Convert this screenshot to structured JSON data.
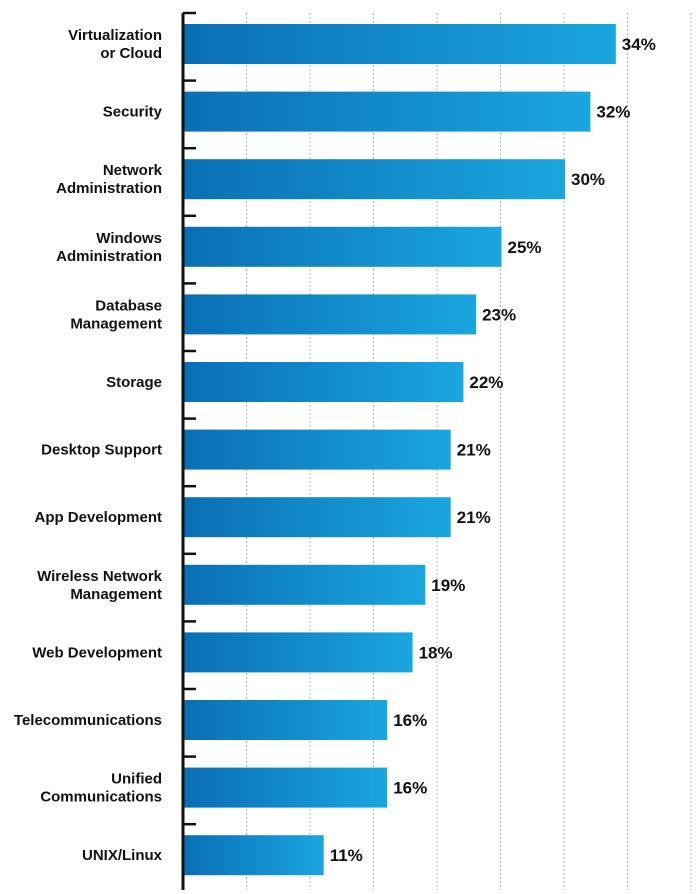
{
  "chart_data": {
    "type": "bar",
    "orientation": "horizontal",
    "categories": [
      "Virtualization or Cloud",
      "Security",
      "Network Administration",
      "Windows Administration",
      "Database Management",
      "Storage",
      "Desktop Support",
      "App Development",
      "Wireless Network Management",
      "Web Development",
      "Telecommunications",
      "Unified Communications",
      "UNIX/Linux"
    ],
    "category_lines": [
      [
        "Virtualization",
        "or Cloud"
      ],
      [
        "Security"
      ],
      [
        "Network",
        "Administration"
      ],
      [
        "Windows",
        "Administration"
      ],
      [
        "Database",
        "Management"
      ],
      [
        "Storage"
      ],
      [
        "Desktop Support"
      ],
      [
        "App Development"
      ],
      [
        "Wireless Network",
        "Management"
      ],
      [
        "Web Development"
      ],
      [
        "Telecommunications"
      ],
      [
        "Unified",
        "Communications"
      ],
      [
        "UNIX/Linux"
      ]
    ],
    "values": [
      34,
      32,
      30,
      25,
      23,
      22,
      21,
      21,
      19,
      18,
      16,
      16,
      11
    ],
    "value_labels": [
      "34%",
      "32%",
      "30%",
      "25%",
      "23%",
      "22%",
      "21%",
      "21%",
      "19%",
      "18%",
      "16%",
      "16%",
      "11%"
    ],
    "xlim": [
      0,
      40
    ],
    "grid": true,
    "colors": {
      "bar_start": "#0a6fb5",
      "bar_end": "#1aa6df",
      "axis": "#111111",
      "grid": "#b5b5b5"
    }
  }
}
